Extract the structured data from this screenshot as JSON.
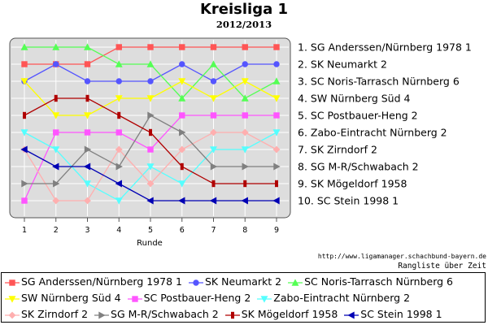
{
  "chart_data": {
    "type": "line",
    "title": "Kreisliga 1",
    "subtitle": "2012/2013",
    "xlabel": "Runde",
    "x": [
      1,
      2,
      3,
      4,
      5,
      6,
      7,
      8,
      9
    ],
    "ylim": [
      0.5,
      10.5
    ],
    "y_inverted": true,
    "grid": true,
    "legend_position": "bottom",
    "right_labels": [
      "1. SG Anderssen/Nürnberg 1978 1",
      "2. SK Neumarkt 2",
      "3. SC Noris-Tarrasch Nürnberg 6",
      "4. SW Nürnberg Süd 4",
      "5. SC Postbauer-Heng 2",
      "6. Zabo-Eintracht Nürnberg 2",
      "7. SK Zirndorf 2",
      "8. SG M-R/Schwabach 2",
      "9. SK Mögeldorf 1958",
      "10. SC Stein 1998 1"
    ],
    "series": [
      {
        "name": "SG Anderssen/Nürnberg 1978 1",
        "color": "#ff5555",
        "marker": "square",
        "values": [
          2,
          2,
          2,
          1,
          1,
          1,
          1,
          1,
          1
        ]
      },
      {
        "name": "SK Neumarkt 2",
        "color": "#5555ff",
        "marker": "circle",
        "values": [
          3,
          2,
          3,
          3,
          3,
          2,
          3,
          2,
          2
        ]
      },
      {
        "name": "SC Noris-Tarrasch Nürnberg 6",
        "color": "#55ff55",
        "marker": "triangle-up",
        "values": [
          1,
          1,
          1,
          2,
          2,
          4,
          2,
          4,
          3
        ]
      },
      {
        "name": "SW Nürnberg Süd 4",
        "color": "#ffff00",
        "marker": "triangle-down",
        "values": [
          3,
          5,
          5,
          4,
          4,
          3,
          4,
          3,
          4
        ]
      },
      {
        "name": "SC Postbauer-Heng 2",
        "color": "#ff55ff",
        "marker": "square",
        "values": [
          10,
          6,
          6,
          6,
          7,
          5,
          5,
          5,
          5
        ]
      },
      {
        "name": "Zabo-Eintracht Nürnberg 2",
        "color": "#55ffff",
        "marker": "triangle-down",
        "values": [
          6,
          7,
          9,
          10,
          8,
          9,
          7,
          7,
          6
        ]
      },
      {
        "name": "SK Zirndorf 2",
        "color": "#ffafaf",
        "marker": "diamond",
        "values": [
          7,
          10,
          10,
          7,
          9,
          7,
          6,
          6,
          7
        ]
      },
      {
        "name": "SG M-R/Schwabach 2",
        "color": "#808080",
        "marker": "triangle-right",
        "values": [
          9,
          9,
          7,
          8,
          5,
          6,
          8,
          8,
          8
        ]
      },
      {
        "name": "SK Mögeldorf 1958",
        "color": "#b00000",
        "marker": "tick",
        "values": [
          5,
          4,
          4,
          5,
          6,
          8,
          9,
          9,
          9
        ]
      },
      {
        "name": "SC Stein 1998 1",
        "color": "#0000b4",
        "marker": "triangle-left",
        "values": [
          7,
          8,
          8,
          9,
          10,
          10,
          10,
          10,
          10
        ]
      }
    ]
  },
  "footer": {
    "source": "http://www.ligamanager.schachbund-bayern.de",
    "caption": "Rangliste über Zeit"
  }
}
